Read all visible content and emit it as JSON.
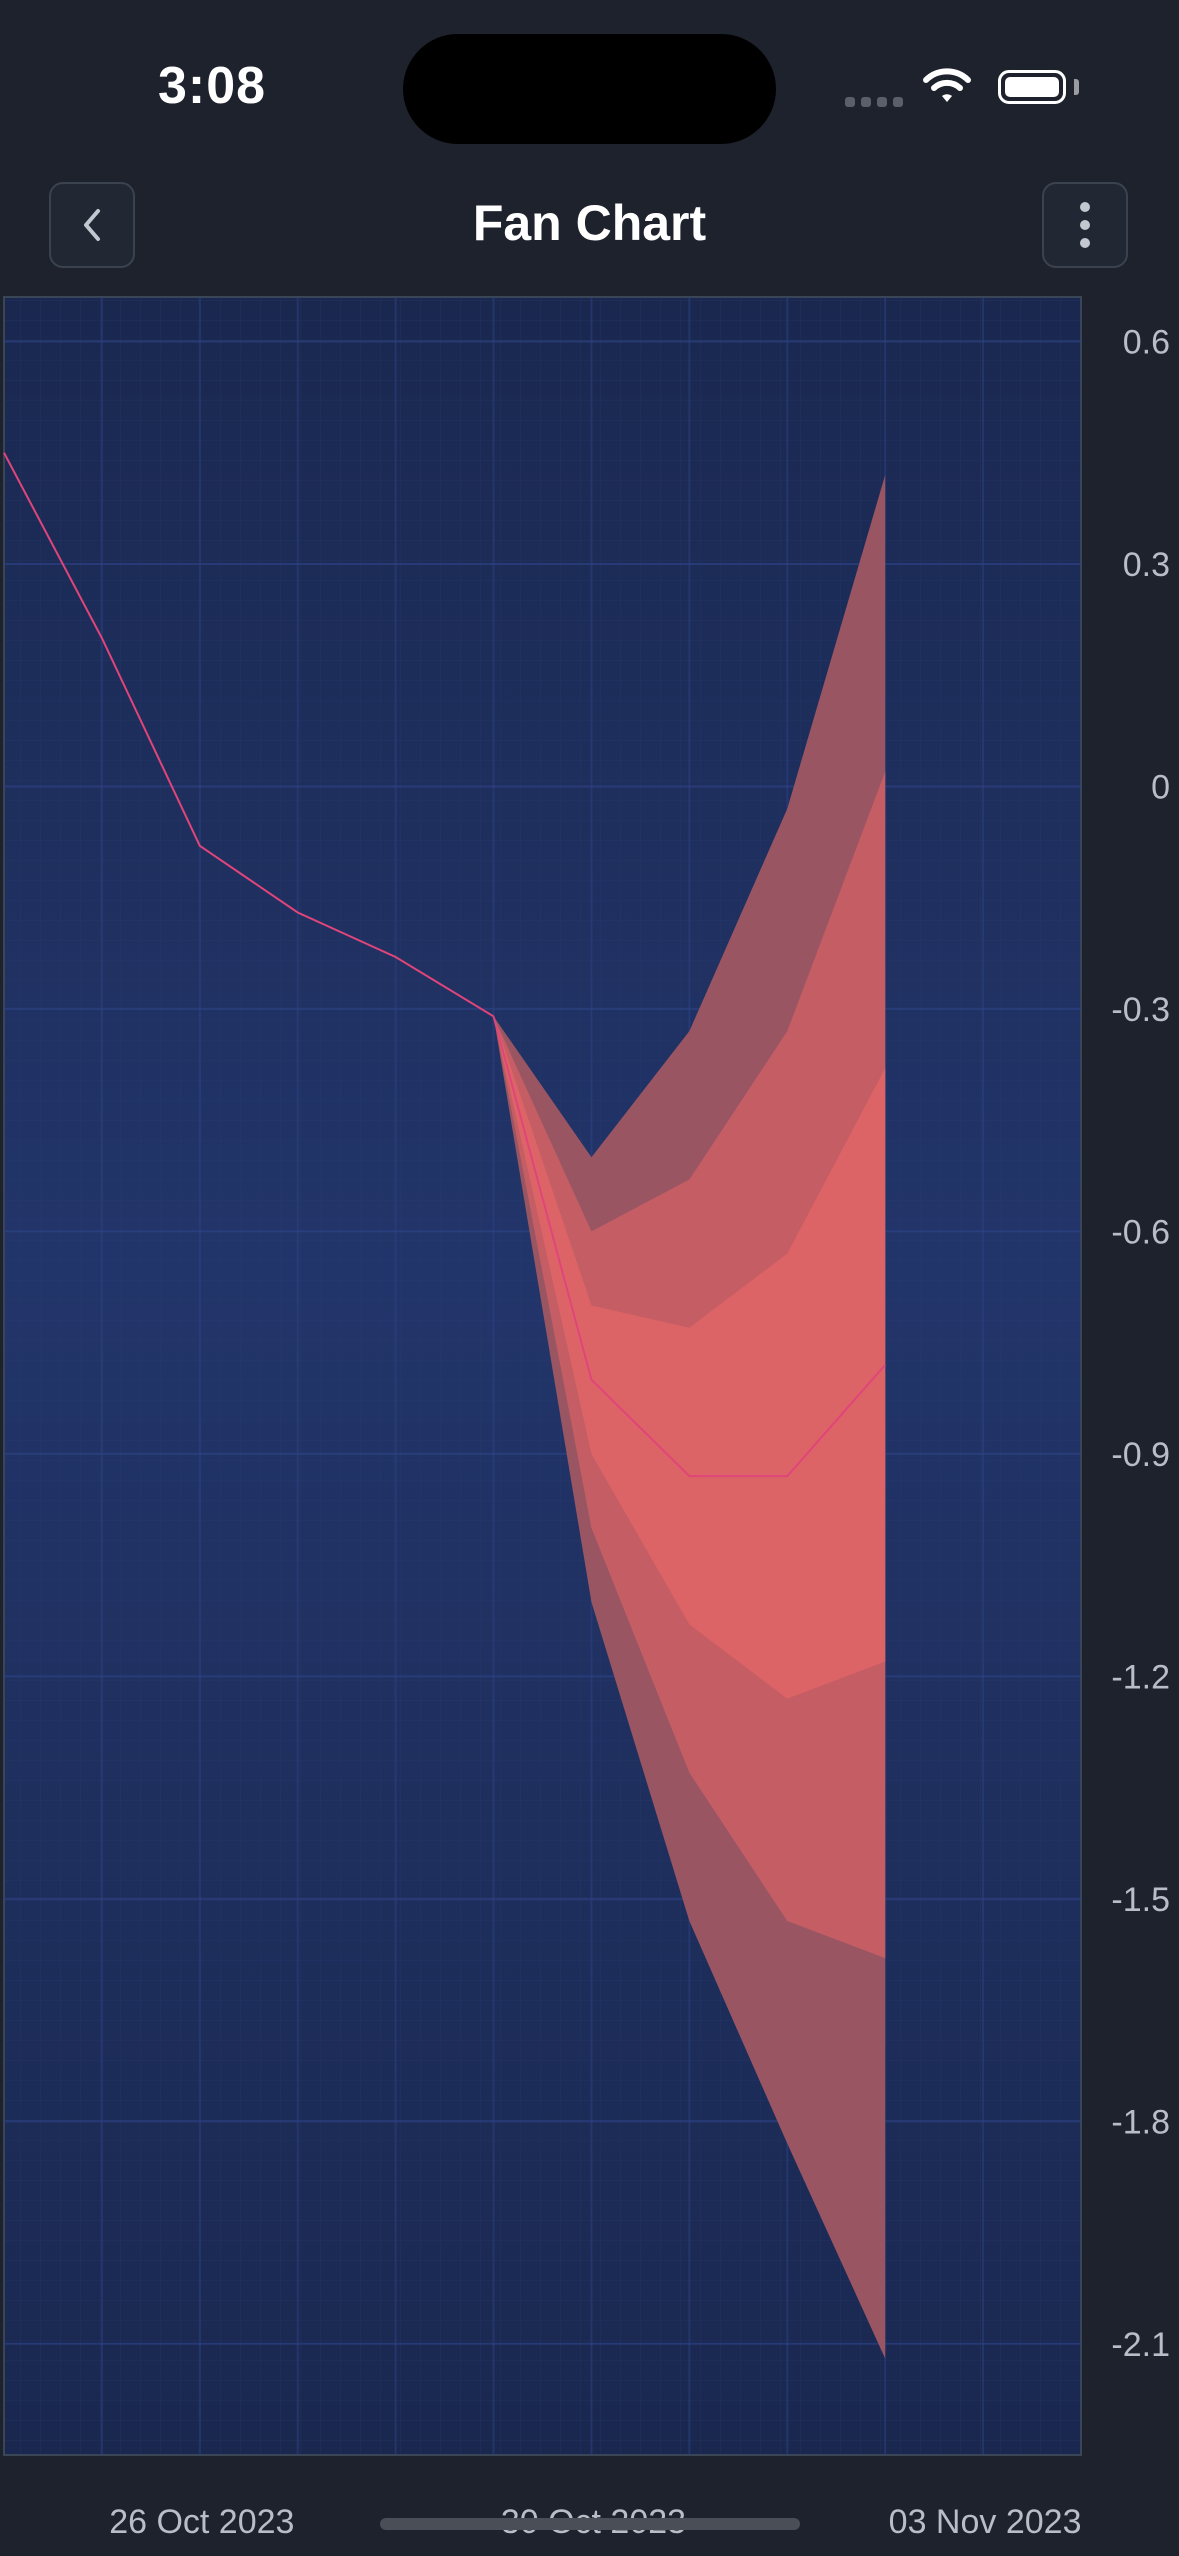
{
  "status_bar": {
    "time": "3:08"
  },
  "header": {
    "title": "Fan Chart"
  },
  "colors": {
    "background": "#1d222c",
    "plot_top": "#1a2850",
    "plot_mid": "#22356a",
    "history_line": "#e0457a",
    "band_outer": "#9a5562",
    "band_2": "#c55d64",
    "band_3": "#dd6466",
    "axis_text": "#b9bdc6"
  },
  "chart_data": {
    "type": "area",
    "title": "",
    "xlabel": "",
    "ylabel": "",
    "x_tick_labels": [
      "26 Oct 2023",
      "30 Oct 2023",
      "03 Nov 2023"
    ],
    "y_tick_labels": [
      "0.6",
      "0.3",
      "0",
      "-0.3",
      "-0.6",
      "-0.9",
      "-1.2",
      "-1.5",
      "-1.8",
      "-2.1"
    ],
    "ylim": [
      -2.25,
      0.66
    ],
    "xlim": [
      "2023-10-25",
      "2023-11-05"
    ],
    "y_axis_position": "right",
    "grid": true,
    "history": {
      "x": [
        "2023-10-25",
        "2023-10-26",
        "2023-10-27",
        "2023-10-28",
        "2023-10-29",
        "2023-10-30"
      ],
      "y": [
        0.45,
        0.2,
        -0.08,
        -0.17,
        -0.23,
        -0.31
      ]
    },
    "forecast": {
      "x": [
        "2023-10-30",
        "2023-10-31",
        "2023-11-01",
        "2023-11-02",
        "2023-11-03"
      ],
      "median": [
        -0.31,
        -0.8,
        -0.93,
        -0.93,
        -0.78
      ],
      "bands": [
        {
          "lower": [
            -0.31,
            -1.1,
            -1.53,
            -1.83,
            -2.12
          ],
          "upper": [
            -0.31,
            -0.5,
            -0.33,
            -0.03,
            0.42
          ]
        },
        {
          "lower": [
            -0.31,
            -1.0,
            -1.33,
            -1.53,
            -1.58
          ],
          "upper": [
            -0.31,
            -0.6,
            -0.53,
            -0.33,
            0.02
          ]
        },
        {
          "lower": [
            -0.31,
            -0.9,
            -1.13,
            -1.23,
            -1.18
          ],
          "upper": [
            -0.31,
            -0.7,
            -0.73,
            -0.63,
            -0.38
          ]
        }
      ]
    }
  }
}
